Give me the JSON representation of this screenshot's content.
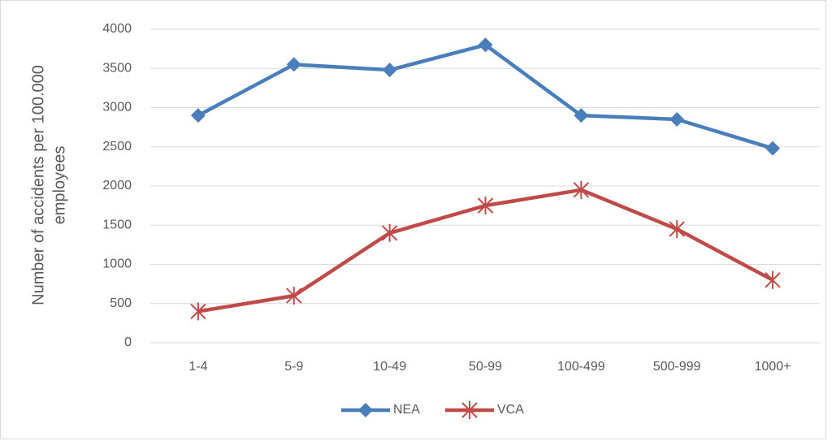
{
  "chart_data": {
    "type": "line",
    "ylabel": [
      "Number of accidents per 100.000",
      "employees"
    ],
    "categories": [
      "1-4",
      "5-9",
      "10-49",
      "50-99",
      "100-499",
      "500-999",
      "1000+"
    ],
    "series": [
      {
        "name": "NEA",
        "color": "#4a7ebb",
        "marker": "diamond",
        "values": [
          2900,
          3550,
          3480,
          3800,
          2900,
          2850,
          2480
        ]
      },
      {
        "name": "VCA",
        "color": "#be4b48",
        "marker": "star",
        "values": [
          400,
          600,
          1400,
          1750,
          1950,
          1450,
          800
        ]
      }
    ],
    "ylim": [
      0,
      4000
    ],
    "yticks": [
      0,
      500,
      1000,
      1500,
      2000,
      2500,
      3000,
      3500,
      4000
    ],
    "grid": true,
    "legend": "bottom"
  }
}
